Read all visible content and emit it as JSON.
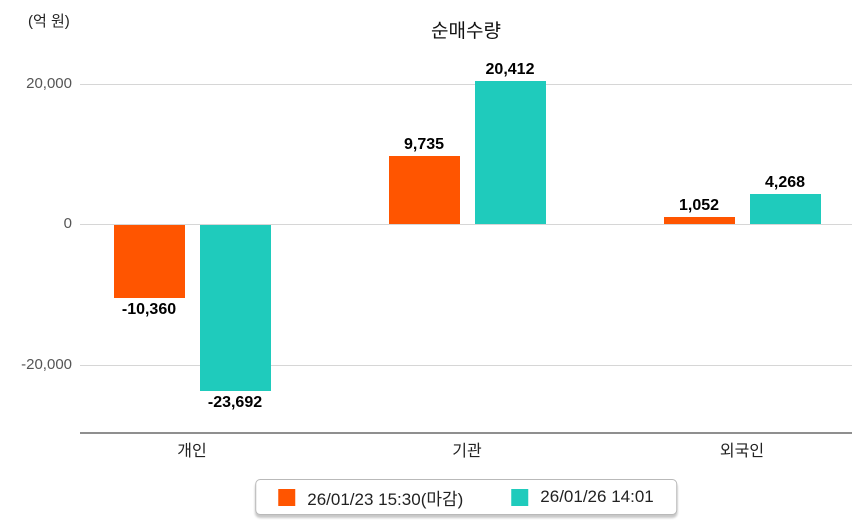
{
  "title": "순매수량",
  "unit_label": "(억 원)",
  "colors": {
    "series1": "#FF5500",
    "series2": "#1FCBBC",
    "grid": "#d6d6d6",
    "axis": "#8f8f8f",
    "tick_text": "#555555",
    "value_text": "#000000"
  },
  "legend": {
    "items": [
      {
        "label": "26/01/23 15:30(마감)",
        "color": "#FF5500"
      },
      {
        "label": "26/01/26 14:01",
        "color": "#1FCBBC"
      }
    ]
  },
  "chart_data": {
    "type": "bar",
    "title": "순매수량",
    "ylabel": "(억 원)",
    "categories": [
      "개인",
      "기관",
      "외국인"
    ],
    "series": [
      {
        "name": "26/01/23 15:30(마감)",
        "color": "#FF5500",
        "values": [
          -10360,
          9735,
          1052
        ],
        "labels": [
          "-10,360",
          "9,735",
          "1,052"
        ]
      },
      {
        "name": "26/01/26 14:01",
        "color": "#1FCBBC",
        "values": [
          -23692,
          20412,
          4268
        ],
        "labels": [
          "-23,692",
          "20,412",
          "4,268"
        ]
      }
    ],
    "yticks": [
      {
        "value": 20000,
        "label": "20,000"
      },
      {
        "value": 0,
        "label": "0"
      },
      {
        "value": -20000,
        "label": "-20,000"
      }
    ],
    "ylim": [
      -28000,
      24000
    ],
    "grid": true,
    "legend_position": "bottom"
  }
}
